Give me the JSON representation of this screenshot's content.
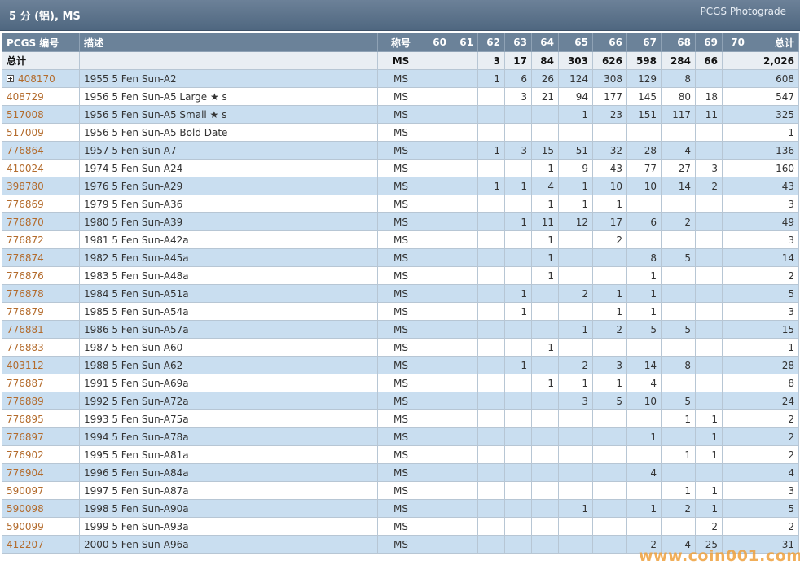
{
  "header": {
    "title": "5 分 (铝), MS",
    "brand": "PCGS Photograde"
  },
  "columns": [
    "PCGS 编号",
    "描述",
    "称号",
    "60",
    "61",
    "62",
    "63",
    "64",
    "65",
    "66",
    "67",
    "68",
    "69",
    "70",
    "总计"
  ],
  "total_row": {
    "label": "总计",
    "designation": "MS",
    "grades": [
      "",
      "",
      "3",
      "17",
      "84",
      "303",
      "626",
      "598",
      "284",
      "66",
      ""
    ],
    "total": "2,026"
  },
  "rows": [
    {
      "pcgs": "408170",
      "desc": "1955 5 Fen Sun-A2",
      "desig": "MS",
      "grades": [
        "",
        "",
        "1",
        "6",
        "26",
        "124",
        "308",
        "129",
        "8",
        "",
        ""
      ],
      "total": "608",
      "expander": true
    },
    {
      "pcgs": "408729",
      "desc": "1956 5 Fen Sun-A5 Large ★ s",
      "desig": "MS",
      "grades": [
        "",
        "",
        "",
        "3",
        "21",
        "94",
        "177",
        "145",
        "80",
        "18",
        ""
      ],
      "total": "547"
    },
    {
      "pcgs": "517008",
      "desc": "1956 5 Fen Sun-A5 Small ★ s",
      "desig": "MS",
      "grades": [
        "",
        "",
        "",
        "",
        "",
        "1",
        "23",
        "151",
        "117",
        "11",
        ""
      ],
      "total": "325"
    },
    {
      "pcgs": "517009",
      "desc": "1956 5 Fen Sun-A5 Bold Date",
      "desig": "MS",
      "grades": [
        "",
        "",
        "",
        "",
        "",
        "",
        "",
        "",
        "",
        "",
        ""
      ],
      "total": "1"
    },
    {
      "pcgs": "776864",
      "desc": "1957 5 Fen Sun-A7",
      "desig": "MS",
      "grades": [
        "",
        "",
        "1",
        "3",
        "15",
        "51",
        "32",
        "28",
        "4",
        "",
        ""
      ],
      "total": "136"
    },
    {
      "pcgs": "410024",
      "desc": "1974 5 Fen Sun-A24",
      "desig": "MS",
      "grades": [
        "",
        "",
        "",
        "",
        "1",
        "9",
        "43",
        "77",
        "27",
        "3",
        ""
      ],
      "total": "160"
    },
    {
      "pcgs": "398780",
      "desc": "1976 5 Fen Sun-A29",
      "desig": "MS",
      "grades": [
        "",
        "",
        "1",
        "1",
        "4",
        "1",
        "10",
        "10",
        "14",
        "2",
        ""
      ],
      "total": "43"
    },
    {
      "pcgs": "776869",
      "desc": "1979 5 Fen Sun-A36",
      "desig": "MS",
      "grades": [
        "",
        "",
        "",
        "",
        "1",
        "1",
        "1",
        "",
        "",
        "",
        ""
      ],
      "total": "3"
    },
    {
      "pcgs": "776870",
      "desc": "1980 5 Fen Sun-A39",
      "desig": "MS",
      "grades": [
        "",
        "",
        "",
        "1",
        "11",
        "12",
        "17",
        "6",
        "2",
        "",
        ""
      ],
      "total": "49"
    },
    {
      "pcgs": "776872",
      "desc": "1981 5 Fen Sun-A42a",
      "desig": "MS",
      "grades": [
        "",
        "",
        "",
        "",
        "1",
        "",
        "2",
        "",
        "",
        "",
        ""
      ],
      "total": "3"
    },
    {
      "pcgs": "776874",
      "desc": "1982 5 Fen Sun-A45a",
      "desig": "MS",
      "grades": [
        "",
        "",
        "",
        "",
        "1",
        "",
        "",
        "8",
        "5",
        "",
        ""
      ],
      "total": "14"
    },
    {
      "pcgs": "776876",
      "desc": "1983 5 Fen Sun-A48a",
      "desig": "MS",
      "grades": [
        "",
        "",
        "",
        "",
        "1",
        "",
        "",
        "1",
        "",
        "",
        ""
      ],
      "total": "2"
    },
    {
      "pcgs": "776878",
      "desc": "1984 5 Fen Sun-A51a",
      "desig": "MS",
      "grades": [
        "",
        "",
        "",
        "1",
        "",
        "2",
        "1",
        "1",
        "",
        "",
        ""
      ],
      "total": "5"
    },
    {
      "pcgs": "776879",
      "desc": "1985 5 Fen Sun-A54a",
      "desig": "MS",
      "grades": [
        "",
        "",
        "",
        "1",
        "",
        "",
        "1",
        "1",
        "",
        "",
        ""
      ],
      "total": "3"
    },
    {
      "pcgs": "776881",
      "desc": "1986 5 Fen Sun-A57a",
      "desig": "MS",
      "grades": [
        "",
        "",
        "",
        "",
        "",
        "1",
        "2",
        "5",
        "5",
        "",
        ""
      ],
      "total": "15"
    },
    {
      "pcgs": "776883",
      "desc": "1987 5 Fen Sun-A60",
      "desig": "MS",
      "grades": [
        "",
        "",
        "",
        "",
        "1",
        "",
        "",
        "",
        "",
        "",
        ""
      ],
      "total": "1"
    },
    {
      "pcgs": "403112",
      "desc": "1988 5 Fen Sun-A62",
      "desig": "MS",
      "grades": [
        "",
        "",
        "",
        "1",
        "",
        "2",
        "3",
        "14",
        "8",
        "",
        ""
      ],
      "total": "28"
    },
    {
      "pcgs": "776887",
      "desc": "1991 5 Fen Sun-A69a",
      "desig": "MS",
      "grades": [
        "",
        "",
        "",
        "",
        "1",
        "1",
        "1",
        "4",
        "",
        "",
        ""
      ],
      "total": "8"
    },
    {
      "pcgs": "776889",
      "desc": "1992 5 Fen Sun-A72a",
      "desig": "MS",
      "grades": [
        "",
        "",
        "",
        "",
        "",
        "3",
        "5",
        "10",
        "5",
        "",
        ""
      ],
      "total": "24"
    },
    {
      "pcgs": "776895",
      "desc": "1993 5 Fen Sun-A75a",
      "desig": "MS",
      "grades": [
        "",
        "",
        "",
        "",
        "",
        "",
        "",
        "",
        "1",
        "1",
        ""
      ],
      "total": "2"
    },
    {
      "pcgs": "776897",
      "desc": "1994 5 Fen Sun-A78a",
      "desig": "MS",
      "grades": [
        "",
        "",
        "",
        "",
        "",
        "",
        "",
        "1",
        "",
        "1",
        ""
      ],
      "total": "2"
    },
    {
      "pcgs": "776902",
      "desc": "1995 5 Fen Sun-A81a",
      "desig": "MS",
      "grades": [
        "",
        "",
        "",
        "",
        "",
        "",
        "",
        "",
        "1",
        "1",
        ""
      ],
      "total": "2"
    },
    {
      "pcgs": "776904",
      "desc": "1996 5 Fen Sun-A84a",
      "desig": "MS",
      "grades": [
        "",
        "",
        "",
        "",
        "",
        "",
        "",
        "4",
        "",
        "",
        ""
      ],
      "total": "4"
    },
    {
      "pcgs": "590097",
      "desc": "1997 5 Fen Sun-A87a",
      "desig": "MS",
      "grades": [
        "",
        "",
        "",
        "",
        "",
        "",
        "",
        "",
        "1",
        "1",
        ""
      ],
      "total": "3"
    },
    {
      "pcgs": "590098",
      "desc": "1998 5 Fen Sun-A90a",
      "desig": "MS",
      "grades": [
        "",
        "",
        "",
        "",
        "",
        "1",
        "",
        "1",
        "2",
        "1",
        ""
      ],
      "total": "5"
    },
    {
      "pcgs": "590099",
      "desc": "1999 5 Fen Sun-A93a",
      "desig": "MS",
      "grades": [
        "",
        "",
        "",
        "",
        "",
        "",
        "",
        "",
        "",
        "2",
        ""
      ],
      "total": "2"
    },
    {
      "pcgs": "412207",
      "desc": "2000 5 Fen Sun-A96a",
      "desig": "MS",
      "grades": [
        "",
        "",
        "",
        "",
        "",
        "",
        "",
        "2",
        "4",
        "25",
        ""
      ],
      "total": "31"
    }
  ],
  "watermark": "www.coin001.com"
}
